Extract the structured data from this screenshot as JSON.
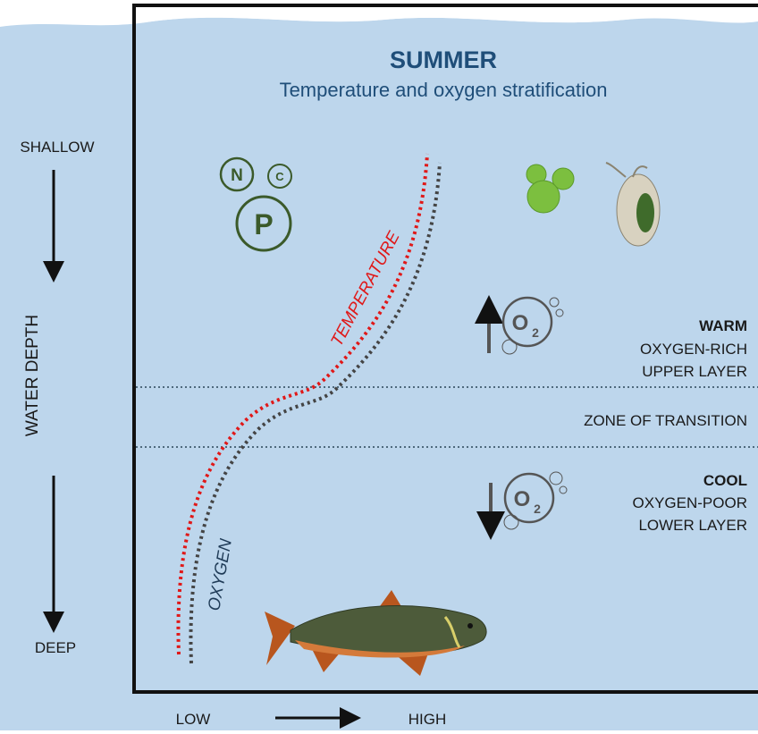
{
  "header": {
    "title": "SUMMER",
    "subtitle": "Temperature and oxygen stratification"
  },
  "depth_axis": {
    "top": "SHALLOW",
    "label": "WATER DEPTH",
    "bottom": "DEEP"
  },
  "value_axis": {
    "low": "LOW",
    "high": "HIGH"
  },
  "nutrients": {
    "n": "N",
    "c": "C",
    "p": "P"
  },
  "curves": {
    "temperature": "TEMPERATURE",
    "oxygen": "OXYGEN"
  },
  "zones": {
    "upper": {
      "temp": "WARM",
      "oxygen": "OXYGEN-RICH",
      "layer": "UPPER LAYER",
      "icon": {
        "symbol": "O",
        "subscript": "2"
      }
    },
    "transition": {
      "label": "ZONE OF TRANSITION"
    },
    "lower": {
      "temp": "COOL",
      "oxygen": "OXYGEN-POOR",
      "layer": "LOWER LAYER",
      "icon": {
        "symbol": "O",
        "subscript": "2"
      }
    }
  }
}
